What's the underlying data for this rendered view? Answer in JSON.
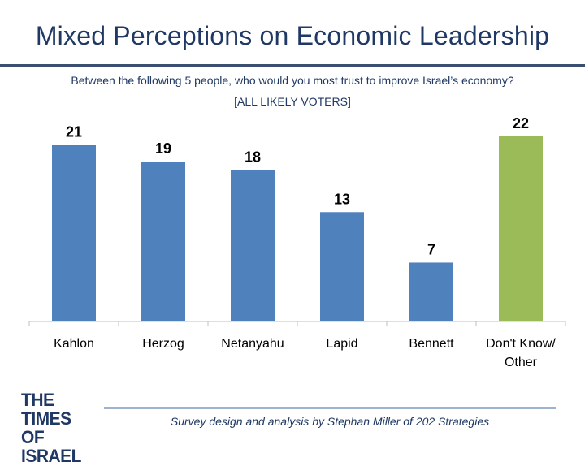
{
  "chart_data": {
    "type": "bar",
    "title": "Mixed Perceptions on Economic Leadership",
    "subtitle": "Between the following 5 people, who would you most trust to improve Israel’s economy?",
    "subtitle2": "[ALL LIKELY VOTERS]",
    "categories": [
      "Kahlon",
      "Herzog",
      "Netanyahu",
      "Lapid",
      "Bennett",
      "Don't Know/\nOther"
    ],
    "values": [
      21,
      19,
      18,
      13,
      7,
      22
    ],
    "colors": [
      "#4f81bd",
      "#4f81bd",
      "#4f81bd",
      "#4f81bd",
      "#4f81bd",
      "#9bbb59"
    ],
    "ylim": [
      0,
      22
    ],
    "grid": false,
    "legend": "none",
    "xlabel": "",
    "ylabel": ""
  },
  "logo": {
    "line1": "THE TIMES",
    "line2": "OF ISRAEL"
  },
  "footer": {
    "credit": "Survey design and analysis by Stephan Miller of 202 Strategies"
  }
}
